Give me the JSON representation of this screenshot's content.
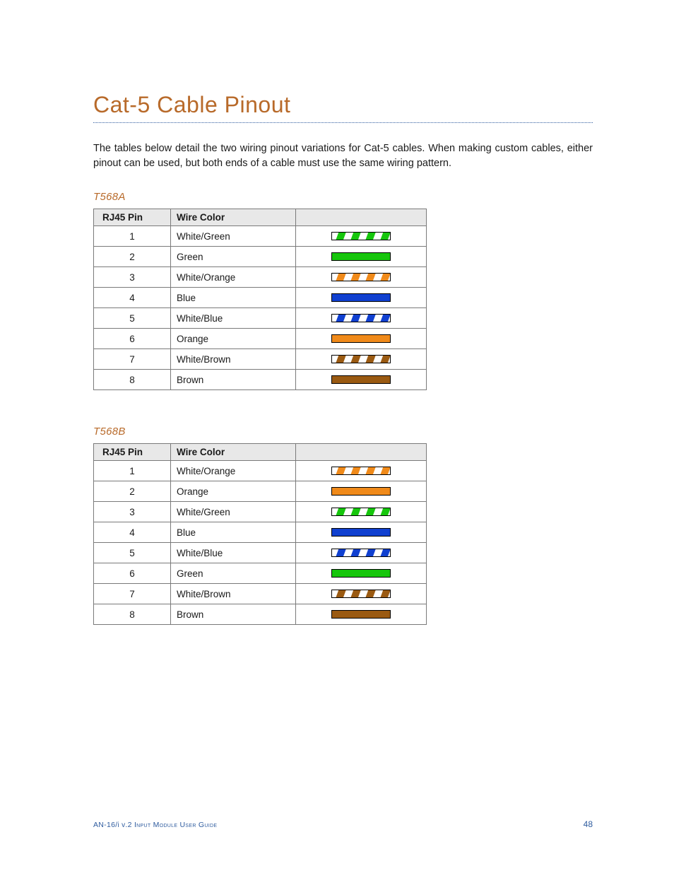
{
  "title": "Cat-5 Cable Pinout",
  "intro": "The tables below detail the two wiring pinout variations for Cat-5 cables. When making custom cables, either pinout can be used, but both ends of a cable must use the same wiring pattern.",
  "colors": {
    "title": "#b86a2a",
    "rule_dot": "#2f5c9f",
    "section_label": "#b86a2a",
    "table_header_bg": "#e8e8e8",
    "table_border": "#7a7a7a",
    "footer_text": "#2f5c9f",
    "body_text": "#1a1a1a",
    "page_bg": "#ffffff"
  },
  "swatch_style": {
    "width": 84,
    "height": 12,
    "stroke": "#000000",
    "stroke_width": 1,
    "stripe_count": 4,
    "stripe_slant_deg": 70
  },
  "wire_palette": {
    "green": "#16c60c",
    "orange": "#f08a1a",
    "blue": "#1040d0",
    "brown": "#9a5a12",
    "white": "#ffffff"
  },
  "headers": {
    "pin": "RJ45 Pin",
    "color": "Wire Color"
  },
  "tables": [
    {
      "label": "T568A",
      "rows": [
        {
          "pin": "1",
          "name": "White/Green",
          "swatch": {
            "type": "striped",
            "base": "white",
            "stripe": "green"
          }
        },
        {
          "pin": "2",
          "name": "Green",
          "swatch": {
            "type": "solid",
            "fill": "green"
          }
        },
        {
          "pin": "3",
          "name": "White/Orange",
          "swatch": {
            "type": "striped",
            "base": "white",
            "stripe": "orange"
          }
        },
        {
          "pin": "4",
          "name": "Blue",
          "swatch": {
            "type": "solid",
            "fill": "blue"
          }
        },
        {
          "pin": "5",
          "name": "White/Blue",
          "swatch": {
            "type": "striped",
            "base": "white",
            "stripe": "blue"
          }
        },
        {
          "pin": "6",
          "name": "Orange",
          "swatch": {
            "type": "solid",
            "fill": "orange"
          }
        },
        {
          "pin": "7",
          "name": "White/Brown",
          "swatch": {
            "type": "striped",
            "base": "white",
            "stripe": "brown"
          }
        },
        {
          "pin": "8",
          "name": "Brown",
          "swatch": {
            "type": "solid",
            "fill": "brown"
          }
        }
      ]
    },
    {
      "label": "T568B",
      "rows": [
        {
          "pin": "1",
          "name": "White/Orange",
          "swatch": {
            "type": "striped",
            "base": "white",
            "stripe": "orange"
          }
        },
        {
          "pin": "2",
          "name": "Orange",
          "swatch": {
            "type": "solid",
            "fill": "orange"
          }
        },
        {
          "pin": "3",
          "name": "White/Green",
          "swatch": {
            "type": "striped",
            "base": "white",
            "stripe": "green"
          }
        },
        {
          "pin": "4",
          "name": "Blue",
          "swatch": {
            "type": "solid",
            "fill": "blue"
          }
        },
        {
          "pin": "5",
          "name": "White/Blue",
          "swatch": {
            "type": "striped",
            "base": "white",
            "stripe": "blue"
          }
        },
        {
          "pin": "6",
          "name": "Green",
          "swatch": {
            "type": "solid",
            "fill": "green"
          }
        },
        {
          "pin": "7",
          "name": "White/Brown",
          "swatch": {
            "type": "striped",
            "base": "white",
            "stripe": "brown"
          }
        },
        {
          "pin": "8",
          "name": "Brown",
          "swatch": {
            "type": "solid",
            "fill": "brown"
          }
        }
      ]
    }
  ],
  "footer": {
    "guide_prefix": "AN-16/",
    "guide_small": "i v",
    "guide_suffix": ".2 Input Module User Guide",
    "page_number": "48"
  }
}
